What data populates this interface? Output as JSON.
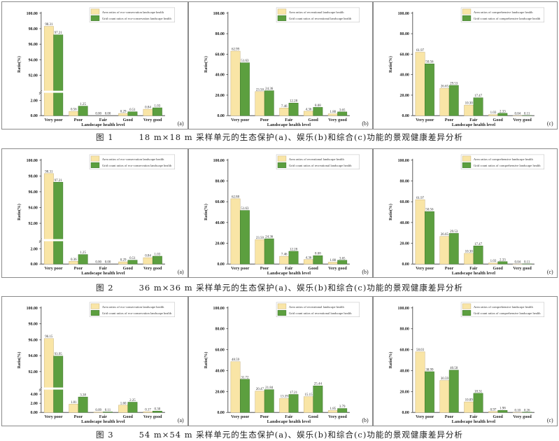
{
  "figures": [
    {
      "label": "图 1",
      "caption": "18 m×18 m 采样单元的生态保护(a)、娱乐(b)和综合(c)功能的景观健康差异分析"
    },
    {
      "label": "图 2",
      "caption": "36 m×36 m 采样单元的生态保护(a)、娱乐(b)和综合(c)功能的景观健康差异分析"
    },
    {
      "label": "图 3",
      "caption": "54 m×54 m 采样单元的生态保护(a)、娱乐(b)和综合(c)功能的景观健康差异分析"
    }
  ],
  "colors": {
    "area": "#f9e5a6",
    "area_border": "#c9b37c",
    "grid": "#5c9f3f",
    "grid_border": "#3b7429"
  },
  "chart_data": [
    {
      "type": "bar",
      "figure": 1,
      "panel": "(a)",
      "xlabel": "Landscape health level",
      "ylabel": "Ratio(%)",
      "categories": [
        "Very poor",
        "Poor",
        "Fair",
        "Good",
        "Very good"
      ],
      "series": [
        {
          "name": "Area ratios of eco-conservation landscape health",
          "values": [
            98.31,
            0.56,
            0.0,
            0.29,
            0.84
          ]
        },
        {
          "name": "Grid count ratios of eco-conservation landscape health",
          "values": [
            97.21,
            1.25,
            0.0,
            0.51,
            1.03
          ]
        }
      ],
      "broken_axis": true,
      "ylim_lower": [
        0,
        3
      ],
      "ylim_upper": [
        90,
        100
      ],
      "yticks_lower": [
        0,
        2
      ],
      "yticks_upper": [
        92,
        94,
        96,
        98,
        100
      ]
    },
    {
      "type": "bar",
      "figure": 1,
      "panel": "(b)",
      "xlabel": "Landscape health level",
      "ylabel": "Ratio(%)",
      "categories": [
        "Very poor",
        "Poor",
        "Fair",
        "Good",
        "Very good"
      ],
      "series": [
        {
          "name": "Area ratios of recreational landscape health",
          "values": [
            62.99,
            23.5,
            7.46,
            4.36,
            1.8
          ]
        },
        {
          "name": "Grid count ratios of recreational landscape health",
          "values": [
            51.63,
            24.36,
            12.28,
            8.08,
            3.65
          ]
        }
      ],
      "broken_axis": false,
      "ylim": [
        0,
        100
      ],
      "yticks": [
        0,
        20,
        40,
        60,
        80,
        100
      ]
    },
    {
      "type": "bar",
      "figure": 1,
      "panel": "(c)",
      "xlabel": "Landscape health level",
      "ylabel": "Ratio(%)",
      "categories": [
        "Very poor",
        "Poor",
        "Fair",
        "Good",
        "Very good"
      ],
      "series": [
        {
          "name": "Area ratios of comprehensive landscape health",
          "values": [
            61.97,
            26.65,
            10.3,
            1.03,
            0.04
          ]
        },
        {
          "name": "Grid count ratios of comprehensive landscape health",
          "values": [
            50.56,
            29.53,
            17.47,
            2.33,
            0.11
          ]
        }
      ],
      "broken_axis": false,
      "ylim": [
        0,
        100
      ],
      "yticks": [
        0,
        20,
        40,
        60,
        80,
        100
      ]
    },
    {
      "type": "bar",
      "figure": 2,
      "panel": "(a)",
      "xlabel": "Landscape health level",
      "ylabel": "Ratio(%)",
      "categories": [
        "Very poor",
        "Poor",
        "Fair",
        "Good",
        "Very good"
      ],
      "series": [
        {
          "name": "Area ratios of eco-conservation landscape health",
          "values": [
            98.31,
            0.36,
            0.0,
            0.29,
            0.84
          ]
        },
        {
          "name": "Grid count ratios of eco-conservation landscape health",
          "values": [
            97.21,
            1.25,
            0.0,
            0.51,
            1.03
          ]
        }
      ],
      "broken_axis": true,
      "ylim_lower": [
        0,
        3
      ],
      "ylim_upper": [
        90,
        100
      ],
      "yticks_lower": [
        0,
        2
      ],
      "yticks_upper": [
        92,
        94,
        96,
        98,
        100
      ]
    },
    {
      "type": "bar",
      "figure": 2,
      "panel": "(b)",
      "xlabel": "Landscape health level",
      "ylabel": "Ratio(%)",
      "categories": [
        "Very poor",
        "Poor",
        "Fair",
        "Good",
        "Very good"
      ],
      "series": [
        {
          "name": "Area ratios of recreational landscape health",
          "values": [
            62.88,
            23.5,
            7.46,
            4.36,
            1.8
          ]
        },
        {
          "name": "Grid count ratios of recreational landscape health",
          "values": [
            51.63,
            24.36,
            12.28,
            8.08,
            3.65
          ]
        }
      ],
      "broken_axis": false,
      "ylim": [
        0,
        100
      ],
      "yticks": [
        0,
        20,
        40,
        60,
        80,
        100
      ]
    },
    {
      "type": "bar",
      "figure": 2,
      "panel": "(c)",
      "xlabel": "Landscape health level",
      "ylabel": "Ratio(%)",
      "categories": [
        "Very poor",
        "Poor",
        "Fair",
        "Good",
        "Very good"
      ],
      "series": [
        {
          "name": "Area ratios of comprehensive landscape health",
          "values": [
            61.97,
            26.65,
            10.3,
            1.03,
            0.04
          ]
        },
        {
          "name": "Grid count ratios of comprehensive landscape health",
          "values": [
            50.56,
            29.53,
            17.47,
            2.33,
            0.11
          ]
        }
      ],
      "broken_axis": false,
      "ylim": [
        0,
        100
      ],
      "yticks": [
        0,
        20,
        40,
        60,
        80,
        100
      ]
    },
    {
      "type": "bar",
      "figure": 3,
      "panel": "(a)",
      "xlabel": "Landscape health level",
      "ylabel": "Ratio(%)",
      "categories": [
        "Very poor",
        "Poor",
        "Fair",
        "Good",
        "Very good"
      ],
      "series": [
        {
          "name": "Area ratios of eco-conservation landscape health",
          "values": [
            96.15,
            1.81,
            0.09,
            1.6,
            0.17
          ]
        },
        {
          "name": "Grid count ratios of eco-conservation landscape health",
          "values": [
            93.95,
            3.38,
            0.11,
            2.25,
            0.3
          ]
        }
      ],
      "broken_axis": true,
      "ylim_lower": [
        0,
        5
      ],
      "ylim_upper": [
        90,
        100
      ],
      "yticks_lower": [
        0,
        2,
        4
      ],
      "yticks_upper": [
        92,
        94,
        96,
        98,
        100
      ]
    },
    {
      "type": "bar",
      "figure": 3,
      "panel": "(b)",
      "xlabel": "Landscape health level",
      "ylabel": "Ratio(%)",
      "categories": [
        "Very poor",
        "Poor",
        "Fair",
        "Good",
        "Very good"
      ],
      "series": [
        {
          "name": "Area ratios of recreational landscape health",
          "values": [
            48.59,
            20.47,
            13.39,
            15.15,
            1.85
          ]
        },
        {
          "name": "Grid count ratios of recreational landscape health",
          "values": [
            31.72,
            21.84,
            17.21,
            25.44,
            3.79
          ]
        }
      ],
      "broken_axis": false,
      "ylim": [
        0,
        100
      ],
      "yticks": [
        0,
        20,
        40,
        60,
        80,
        100
      ]
    },
    {
      "type": "bar",
      "figure": 3,
      "panel": "(c)",
      "xlabel": "Landscape health level",
      "ylabel": "Ratio(%)",
      "categories": [
        "Very poor",
        "Poor",
        "Fair",
        "Good",
        "Very good"
      ],
      "series": [
        {
          "name": "Area ratios of comprehensive landscape health",
          "values": [
            58.03,
            30.59,
            10.09,
            0.97,
            0.1
          ]
        },
        {
          "name": "Grid count ratios of comprehensive landscape health",
          "values": [
            38.99,
            40.5,
            18.31,
            1.98,
            0.26
          ]
        }
      ],
      "broken_axis": false,
      "ylim": [
        0,
        100
      ],
      "yticks": [
        0,
        20,
        40,
        60,
        80,
        100
      ]
    }
  ]
}
